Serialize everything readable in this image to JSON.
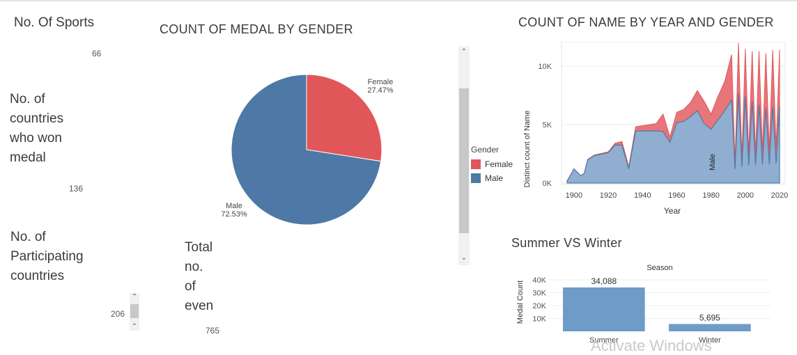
{
  "kpis": {
    "sports": {
      "title": "No. Of Sports",
      "value": "66"
    },
    "countries_won": {
      "title_lines": [
        "No. of",
        "countries",
        "who won",
        "medal"
      ],
      "value": "136"
    },
    "participating": {
      "title_lines": [
        "No. of",
        "Participating",
        "countries"
      ],
      "value": "206"
    },
    "events": {
      "title_lines": [
        "Total",
        "no.",
        "of",
        "even"
      ],
      "value": "765"
    }
  },
  "colors": {
    "female": "#e15759",
    "male": "#4e79a7",
    "male_area": "#8faed0",
    "bar": "#6f9bc7"
  },
  "chart_data": [
    {
      "type": "pie",
      "title": "COUNT OF MEDAL BY GENDER",
      "slices": [
        {
          "name": "Female",
          "value": 27.47,
          "label": "27.47%"
        },
        {
          "name": "Male",
          "value": 72.53,
          "label": "72.53%"
        }
      ],
      "legend": {
        "title": "Gender",
        "items": [
          "Female",
          "Male"
        ],
        "placement": "right"
      }
    },
    {
      "type": "area",
      "title": "COUNT OF NAME BY YEAR AND GENDER",
      "xlabel": "Year",
      "ylabel": "Distinct count of Name",
      "xlim": [
        1896,
        2020
      ],
      "ylim": [
        0,
        11500
      ],
      "x_ticks": [
        "1900",
        "1920",
        "1940",
        "1960",
        "1980",
        "2000",
        "2020"
      ],
      "y_ticks": [
        "0K",
        "5K",
        "10K"
      ],
      "x": [
        1896,
        1900,
        1904,
        1906,
        1908,
        1912,
        1920,
        1924,
        1928,
        1932,
        1936,
        1948,
        1952,
        1956,
        1960,
        1964,
        1968,
        1972,
        1976,
        1980,
        1984,
        1988,
        1992,
        1994,
        1996,
        1998,
        2000,
        2002,
        2004,
        2006,
        2008,
        2010,
        2012,
        2014,
        2016,
        2018,
        2020
      ],
      "series": [
        {
          "name": "Male",
          "values": [
            176,
            1199,
            624,
            833,
            1980,
            2357,
            2595,
            3256,
            3246,
            1206,
            4457,
            4470,
            4405,
            3493,
            5171,
            5277,
            5685,
            6200,
            5100,
            4600,
            5400,
            6200,
            7100,
            1215,
            7700,
            1389,
            7400,
            1530,
            7000,
            1548,
            6700,
            1600,
            6400,
            1600,
            6500,
            1700,
            6600
          ]
        },
        {
          "name": "Female",
          "values": [
            0,
            23,
            6,
            6,
            44,
            53,
            78,
            156,
            312,
            201,
            360,
            628,
            1497,
            448,
            889,
            1019,
            1212,
            1720,
            1900,
            1300,
            2000,
            2500,
            3900,
            520,
            4300,
            810,
            4100,
            990,
            4300,
            960,
            4600,
            1240,
            4700,
            1250,
            4900,
            1340,
            4800
          ]
        }
      ],
      "annotation": "Male"
    },
    {
      "type": "bar",
      "title": "Summer VS Winter",
      "header": "Season",
      "categories": [
        "Summer",
        "Winter"
      ],
      "values": [
        34088,
        5695
      ],
      "value_labels": [
        "34,088",
        "5,695"
      ],
      "ylabel": "Medal Count",
      "y_ticks": [
        "10K",
        "20K",
        "30K",
        "40K"
      ],
      "ylim": [
        0,
        40000
      ]
    }
  ],
  "watermark": "Activate Windows"
}
